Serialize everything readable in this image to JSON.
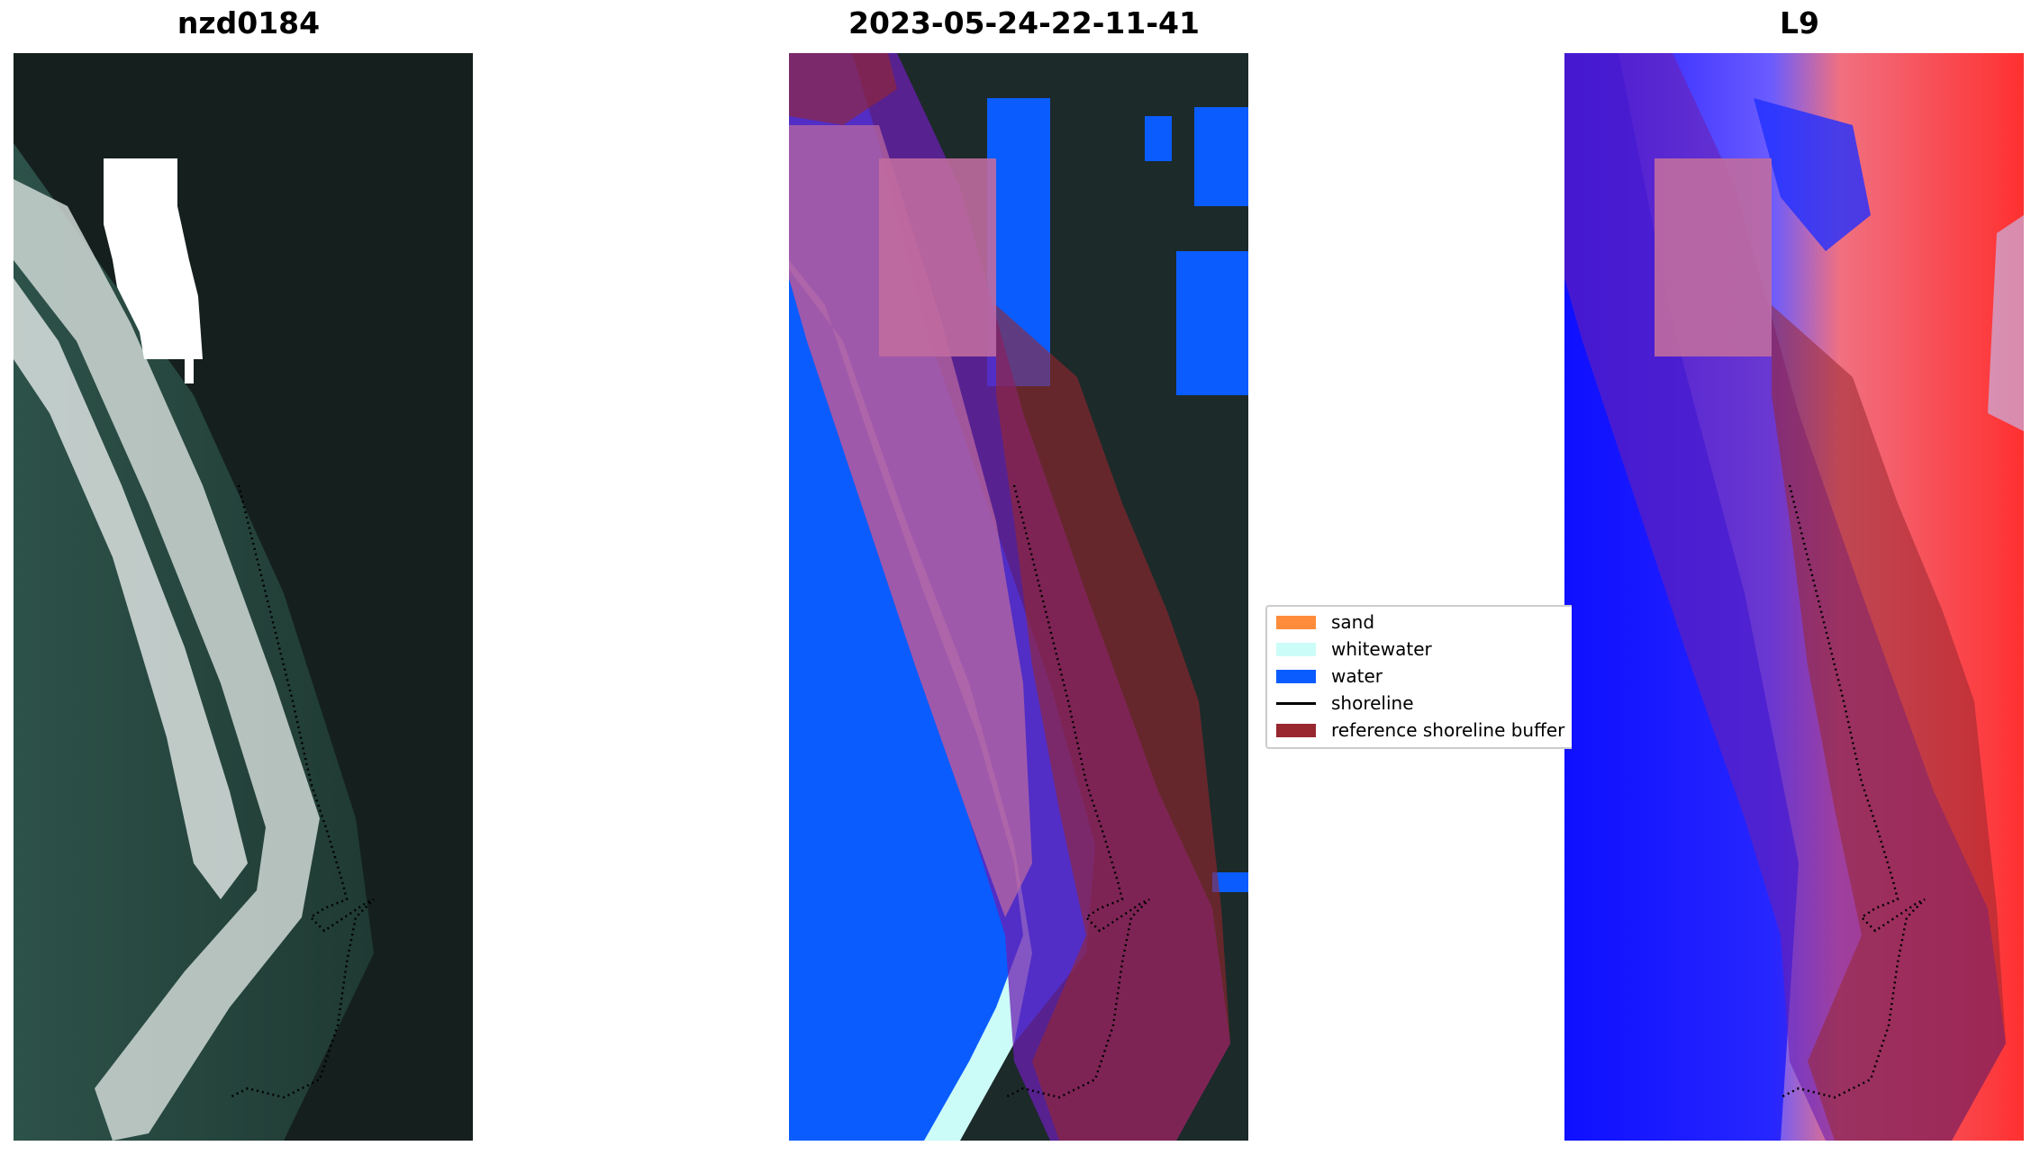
{
  "panels": [
    {
      "title": "nzd0184"
    },
    {
      "title": "2023-05-24-22-11-41"
    },
    {
      "title": "L9"
    }
  ],
  "legend": {
    "items": [
      {
        "label": "sand",
        "color": "#ff8c3a"
      },
      {
        "label": "whitewater",
        "color": "#ccfcf8"
      },
      {
        "label": "water",
        "color": "#0a5cff"
      },
      {
        "label": "shoreline",
        "color": "#000000"
      },
      {
        "label": "reference shoreline buffer",
        "color": "#98272f"
      }
    ]
  },
  "colors": {
    "buffer": "#98272f",
    "overlay_purple": "#6b1fb3",
    "sand_overlay": "#c06ca0"
  }
}
